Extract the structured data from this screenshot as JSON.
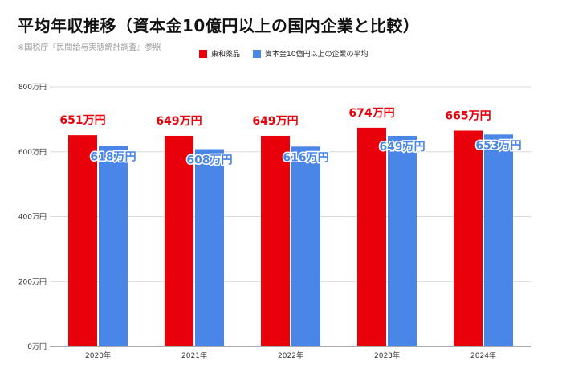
{
  "title": "平均年収推移（資本金10億円以上の国内企業と比較）",
  "subtitle": "※国税庁『民間給与実態統計調査』参照",
  "colors": {
    "company": "#e8000b",
    "benchmark": "#4a86e8",
    "grid": "#d9d9d9"
  },
  "chart_data": {
    "type": "bar",
    "categories": [
      "2020年",
      "2021年",
      "2022年",
      "2023年",
      "2024年"
    ],
    "series": [
      {
        "name": "東和薬品",
        "values": [
          651,
          649,
          649,
          674,
          665
        ],
        "labels": [
          "651万円",
          "649万円",
          "649万円",
          "674万円",
          "665万円"
        ]
      },
      {
        "name": "資本金10億円以上の企業の平均",
        "values": [
          618,
          608,
          616,
          649,
          653
        ],
        "labels": [
          "618万円",
          "608万円",
          "616万円",
          "649万円",
          "653万円"
        ]
      }
    ],
    "ylim": [
      0,
      800
    ],
    "yticks": [
      0,
      200,
      400,
      600,
      800
    ],
    "ytick_labels": [
      "0万円",
      "200万円",
      "400万円",
      "600万円",
      "800万円"
    ],
    "grid": true,
    "legend": "top"
  }
}
